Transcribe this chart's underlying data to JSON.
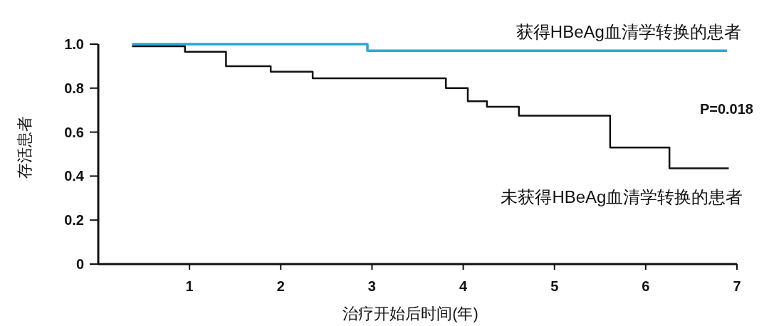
{
  "chart_data": {
    "type": "step",
    "xlabel": "治疗开始后时间(年)",
    "ylabel": "存活患者",
    "xlim": [
      0,
      7
    ],
    "xticks": [
      1,
      2,
      3,
      4,
      5,
      6,
      7
    ],
    "ylim": [
      0,
      1
    ],
    "yticks": [
      0,
      {
        "value": 0.2,
        "label": "0.2"
      },
      {
        "value": 0.4,
        "label": "0.4"
      },
      {
        "value": 0.6,
        "label": "0.6"
      },
      {
        "value": 0.8,
        "label": "0.8"
      },
      {
        "value": 1,
        "label": "1.0"
      }
    ],
    "grid": false,
    "marker": "none",
    "line_style": "solid",
    "annotations": [
      "P=0.018"
    ],
    "series": [
      {
        "name": "获得HBeAg血清学转换的患者",
        "color": "#29a8d8",
        "x": [
          0.37,
          2.95,
          6.89
        ],
        "values": [
          1.0,
          0.97,
          0.97
        ]
      },
      {
        "name": "未获得HBeAg血清学转换的患者",
        "color": "#111111",
        "x": [
          0.37,
          0.95,
          1.4,
          1.89,
          2.35,
          3.81,
          4.05,
          4.26,
          4.61,
          5.61,
          6.26,
          6.91
        ],
        "values": [
          0.99,
          0.965,
          0.9,
          0.875,
          0.845,
          0.8,
          0.74,
          0.715,
          0.675,
          0.53,
          0.435,
          0.435
        ]
      }
    ]
  }
}
